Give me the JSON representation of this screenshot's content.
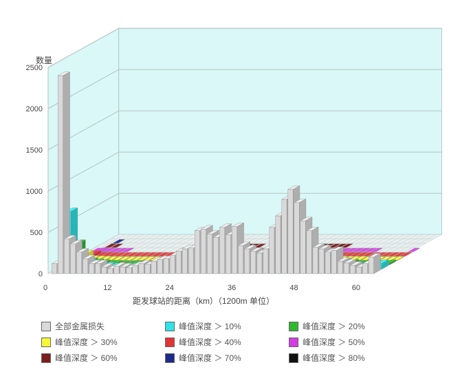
{
  "chart": {
    "type": "3d-bar-multi-series",
    "y_axis": {
      "label": "数量",
      "ticks": [
        0,
        500,
        1000,
        1500,
        2000,
        2500
      ],
      "ylim": [
        0,
        2500
      ],
      "fontsize": 12
    },
    "x_axis": {
      "label": "距发球站的距离（km）（1200m 单位）",
      "ticks": [
        0,
        12,
        24,
        36,
        48,
        60
      ],
      "fontsize": 12
    },
    "depth_rows": 9,
    "background_wall_color": "#d9f8f7",
    "floor_face_color": "#f2f7f5",
    "grid_color": "#b8c4c4",
    "floor_tile_fill": "#e9efef",
    "floor_tile_stroke": "#c7d2d2",
    "bar_stroke": "#888888",
    "series": [
      {
        "key": "all",
        "label": "全部金属损失",
        "color": "#d9d9d9"
      },
      {
        "key": "d10",
        "label": "峰值深度 ＞ 10%",
        "color": "#2fe3e6"
      },
      {
        "key": "d20",
        "label": "峰值深度 ＞ 20%",
        "color": "#2fb82f"
      },
      {
        "key": "d30",
        "label": "峰值深度 ＞ 30%",
        "color": "#f7f73a"
      },
      {
        "key": "d40",
        "label": "峰值深度 ＞ 40%",
        "color": "#e33434"
      },
      {
        "key": "d50",
        "label": "峰值深度 ＞ 50%",
        "color": "#d23de0"
      },
      {
        "key": "d60",
        "label": "峰值深度 ＞ 60%",
        "color": "#7a1d1d"
      },
      {
        "key": "d70",
        "label": "峰值深度 ＞ 70%",
        "color": "#1d2a8a"
      },
      {
        "key": "d80",
        "label": "峰值深度 ＞ 80%",
        "color": "#111111"
      }
    ],
    "x_values_km": [
      0,
      1.2,
      2.4,
      3.6,
      4.8,
      6,
      7.2,
      8.4,
      9.6,
      10.8,
      12,
      13.2,
      14.4,
      15.6,
      16.8,
      18,
      19.2,
      20.4,
      21.6,
      22.8,
      24,
      25.2,
      26.4,
      27.6,
      28.8,
      30,
      31.2,
      32.4,
      33.6,
      34.8,
      36,
      37.2,
      38.4,
      39.6,
      40.8,
      42,
      43.2,
      44.4,
      45.6,
      46.8,
      48,
      49.2,
      50.4,
      51.6,
      52.8,
      54,
      55.2,
      56.4,
      57.6,
      58.8,
      60,
      61.2,
      62.4
    ],
    "data": {
      "all": [
        0,
        120,
        2400,
        420,
        360,
        260,
        180,
        120,
        120,
        80,
        60,
        90,
        80,
        70,
        100,
        120,
        110,
        150,
        170,
        180,
        220,
        270,
        300,
        310,
        520,
        540,
        480,
        440,
        560,
        470,
        570,
        340,
        300,
        270,
        250,
        300,
        560,
        700,
        900,
        1020,
        860,
        640,
        520,
        320,
        300,
        260,
        280,
        150,
        130,
        100,
        80,
        120,
        200
      ],
      "d10": [
        0,
        60,
        700,
        150,
        120,
        90,
        60,
        40,
        40,
        30,
        20,
        30,
        30,
        25,
        35,
        45,
        40,
        55,
        60,
        65,
        80,
        100,
        110,
        115,
        190,
        200,
        175,
        160,
        205,
        170,
        210,
        125,
        110,
        100,
        90,
        110,
        205,
        255,
        330,
        320,
        200,
        150,
        120,
        100,
        95,
        85,
        90,
        50,
        45,
        35,
        30,
        40,
        70
      ],
      "d20": [
        0,
        20,
        260,
        50,
        40,
        30,
        20,
        12,
        12,
        8,
        6,
        9,
        8,
        7,
        10,
        12,
        11,
        15,
        17,
        18,
        22,
        27,
        30,
        31,
        52,
        54,
        48,
        44,
        56,
        47,
        57,
        34,
        30,
        27,
        25,
        30,
        56,
        70,
        90,
        85,
        55,
        42,
        34,
        26,
        25,
        22,
        23,
        13,
        12,
        10,
        8,
        10,
        18
      ],
      "d30": [
        0,
        6,
        80,
        15,
        12,
        9,
        6,
        4,
        4,
        3,
        2,
        3,
        3,
        2,
        3,
        4,
        3,
        5,
        5,
        6,
        7,
        9,
        10,
        10,
        17,
        18,
        16,
        15,
        19,
        16,
        19,
        11,
        10,
        9,
        8,
        10,
        19,
        23,
        30,
        28,
        18,
        14,
        11,
        9,
        8,
        7,
        8,
        4,
        4,
        3,
        3,
        3,
        6
      ],
      "d40": [
        0,
        2,
        24,
        5,
        4,
        3,
        2,
        1,
        1,
        1,
        1,
        1,
        1,
        1,
        1,
        1,
        1,
        2,
        2,
        2,
        2,
        3,
        3,
        3,
        5,
        5,
        5,
        4,
        6,
        5,
        6,
        3,
        3,
        3,
        3,
        3,
        6,
        7,
        9,
        9,
        6,
        4,
        3,
        3,
        3,
        2,
        2,
        1,
        1,
        1,
        1,
        1,
        2
      ],
      "d50": [
        0,
        1,
        8,
        2,
        1,
        1,
        1,
        0,
        0,
        0,
        0,
        0,
        0,
        0,
        0,
        0,
        0,
        1,
        1,
        1,
        1,
        1,
        1,
        1,
        2,
        2,
        2,
        1,
        2,
        2,
        2,
        1,
        1,
        1,
        1,
        1,
        2,
        2,
        3,
        3,
        2,
        1,
        1,
        1,
        1,
        1,
        1,
        0,
        0,
        0,
        0,
        0,
        1
      ],
      "d60": [
        0,
        0,
        3,
        1,
        0,
        0,
        0,
        0,
        0,
        0,
        0,
        0,
        0,
        0,
        0,
        0,
        0,
        0,
        0,
        0,
        0,
        0,
        0,
        0,
        1,
        1,
        1,
        0,
        1,
        1,
        1,
        0,
        0,
        0,
        0,
        0,
        1,
        1,
        1,
        1,
        1,
        0,
        0,
        0,
        0,
        0,
        0,
        0,
        0,
        0,
        0,
        0,
        0
      ],
      "d70": [
        0,
        0,
        1,
        0,
        0,
        0,
        0,
        0,
        0,
        0,
        0,
        0,
        0,
        0,
        0,
        0,
        0,
        0,
        0,
        0,
        0,
        0,
        0,
        0,
        0,
        0,
        0,
        0,
        0,
        0,
        0,
        0,
        0,
        0,
        0,
        0,
        0,
        0,
        0,
        0,
        0,
        0,
        0,
        0,
        0,
        0,
        0,
        0,
        0,
        0,
        0,
        0,
        0
      ],
      "d80": [
        0,
        0,
        0,
        0,
        0,
        0,
        0,
        0,
        0,
        0,
        0,
        0,
        0,
        0,
        0,
        0,
        0,
        0,
        0,
        0,
        0,
        0,
        0,
        0,
        0,
        0,
        0,
        0,
        0,
        0,
        0,
        0,
        0,
        0,
        0,
        0,
        0,
        0,
        0,
        0,
        0,
        0,
        0,
        0,
        0,
        0,
        0,
        0,
        0,
        0,
        0,
        0,
        0
      ]
    }
  },
  "legend_layout": [
    [
      "all",
      "d10",
      "d20"
    ],
    [
      "d30",
      "d40",
      "d50"
    ],
    [
      "d60",
      "d70",
      "d80"
    ]
  ]
}
